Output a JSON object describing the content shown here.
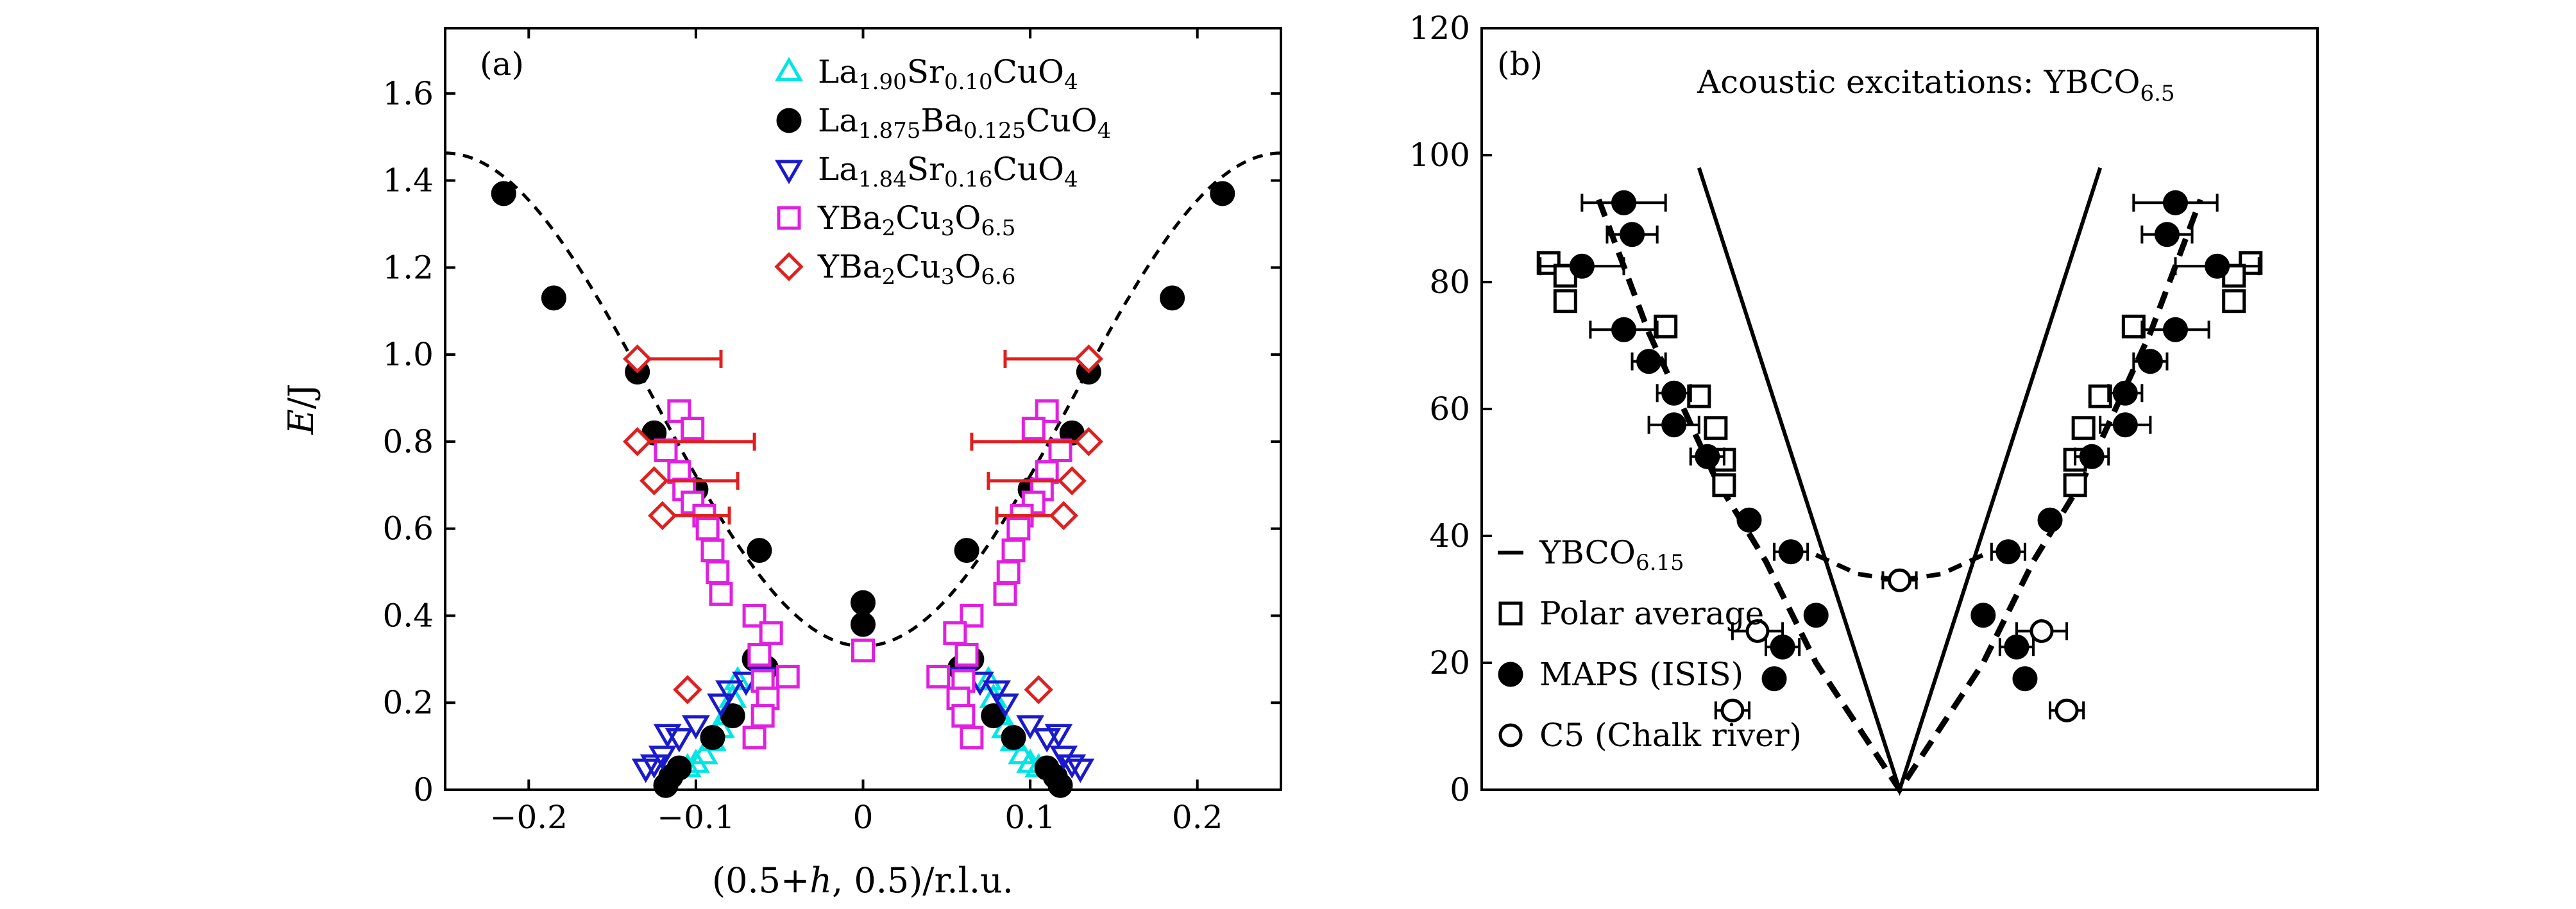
{
  "chart_data": [
    {
      "panel": "(a)",
      "type": "scatter",
      "xlabel_main": "(0.5+",
      "xlabel_italic": "h",
      "xlabel_tail": ", 0.5)/r.l.u.",
      "ylabel_italic": "E",
      "ylabel_tail": "/J",
      "xlim": [
        -0.25,
        0.25
      ],
      "ylim": [
        0,
        1.75
      ],
      "xticks": [
        -0.2,
        -0.1,
        0,
        0.1,
        0.2
      ],
      "xtick_labels": [
        "−0.2",
        "−0.1",
        "0",
        "0.1",
        "0.2"
      ],
      "yticks": [
        0,
        0.2,
        0.4,
        0.6,
        0.8,
        1.0,
        1.2,
        1.4,
        1.6
      ],
      "ytick_labels": [
        "0",
        "0.2",
        "0.4",
        "0.6",
        "0.8",
        "1.0",
        "1.2",
        "1.4",
        "1.6"
      ],
      "legend": [
        {
          "name": "lsco10",
          "parts": [
            [
              "La",
              ""
            ],
            [
              "1.90",
              "sub"
            ],
            [
              "Sr",
              ""
            ],
            [
              "0.10",
              "sub"
            ],
            [
              "CuO",
              ""
            ],
            [
              "4",
              "sub"
            ]
          ]
        },
        {
          "name": "lbco",
          "parts": [
            [
              "La",
              ""
            ],
            [
              "1.875",
              "sub"
            ],
            [
              "Ba",
              ""
            ],
            [
              "0.125",
              "sub"
            ],
            [
              "CuO",
              ""
            ],
            [
              "4",
              "sub"
            ]
          ]
        },
        {
          "name": "lsco16",
          "parts": [
            [
              "La",
              ""
            ],
            [
              "1.84",
              "sub"
            ],
            [
              "Sr",
              ""
            ],
            [
              "0.16",
              "sub"
            ],
            [
              "CuO",
              ""
            ],
            [
              "4",
              "sub"
            ]
          ]
        },
        {
          "name": "ybco65",
          "parts": [
            [
              "YBa",
              ""
            ],
            [
              "2",
              "sub"
            ],
            [
              "Cu",
              ""
            ],
            [
              "3",
              "sub"
            ],
            [
              "O",
              ""
            ],
            [
              "6.5",
              "sub"
            ]
          ]
        },
        {
          "name": "ybco66",
          "parts": [
            [
              "YBa",
              ""
            ],
            [
              "2",
              "sub"
            ],
            [
              "Cu",
              ""
            ],
            [
              "3",
              "sub"
            ],
            [
              "O",
              ""
            ],
            [
              "6.6",
              "sub"
            ]
          ]
        }
      ],
      "series": [
        {
          "name": "lsco10",
          "marker": "triangle-up",
          "color": "#00e5e5",
          "points": [
            [
              -0.075,
              0.25
            ],
            [
              -0.078,
              0.21
            ],
            [
              -0.082,
              0.17
            ],
            [
              -0.085,
              0.14
            ],
            [
              -0.09,
              0.11
            ],
            [
              -0.095,
              0.08
            ],
            [
              -0.1,
              0.06
            ],
            [
              -0.105,
              0.05
            ],
            [
              0.075,
              0.25
            ],
            [
              0.078,
              0.21
            ],
            [
              0.082,
              0.17
            ],
            [
              0.085,
              0.14
            ],
            [
              0.09,
              0.11
            ],
            [
              0.095,
              0.08
            ],
            [
              0.1,
              0.06
            ],
            [
              0.105,
              0.05
            ]
          ]
        },
        {
          "name": "lbco",
          "marker": "circle",
          "color": "#000000",
          "points": [
            [
              -0.215,
              1.37
            ],
            [
              -0.185,
              1.13
            ],
            [
              -0.135,
              0.96
            ],
            [
              -0.125,
              0.82
            ],
            [
              -0.1,
              0.69
            ],
            [
              -0.062,
              0.55
            ],
            [
              -0.065,
              0.3
            ],
            [
              -0.058,
              0.28
            ],
            [
              -0.078,
              0.17
            ],
            [
              -0.09,
              0.12
            ],
            [
              -0.11,
              0.05
            ],
            [
              -0.115,
              0.03
            ],
            [
              -0.118,
              0.01
            ],
            [
              0,
              0.43
            ],
            [
              0,
              0.38
            ],
            [
              0.215,
              1.37
            ],
            [
              0.185,
              1.13
            ],
            [
              0.135,
              0.96
            ],
            [
              0.125,
              0.82
            ],
            [
              0.1,
              0.69
            ],
            [
              0.062,
              0.55
            ],
            [
              0.065,
              0.3
            ],
            [
              0.058,
              0.28
            ],
            [
              0.078,
              0.17
            ],
            [
              0.09,
              0.12
            ],
            [
              0.11,
              0.05
            ],
            [
              0.115,
              0.03
            ],
            [
              0.118,
              0.01
            ]
          ]
        },
        {
          "name": "lsco16",
          "marker": "triangle-down",
          "color": "#1a1acc",
          "points": [
            [
              -0.06,
              0.26
            ],
            [
              -0.07,
              0.25
            ],
            [
              -0.08,
              0.23
            ],
            [
              -0.085,
              0.2
            ],
            [
              -0.1,
              0.15
            ],
            [
              -0.11,
              0.12
            ],
            [
              -0.117,
              0.13
            ],
            [
              -0.12,
              0.08
            ],
            [
              -0.125,
              0.06
            ],
            [
              -0.13,
              0.05
            ],
            [
              0.06,
              0.26
            ],
            [
              0.07,
              0.25
            ],
            [
              0.08,
              0.23
            ],
            [
              0.085,
              0.2
            ],
            [
              0.1,
              0.15
            ],
            [
              0.11,
              0.12
            ],
            [
              0.117,
              0.13
            ],
            [
              0.12,
              0.08
            ],
            [
              0.125,
              0.06
            ],
            [
              0.13,
              0.05
            ]
          ]
        },
        {
          "name": "ybco65",
          "marker": "square",
          "color": "#e020e0",
          "points": [
            [
              -0.11,
              0.87
            ],
            [
              -0.102,
              0.83
            ],
            [
              -0.118,
              0.78
            ],
            [
              -0.11,
              0.73
            ],
            [
              -0.107,
              0.69
            ],
            [
              -0.102,
              0.66
            ],
            [
              -0.095,
              0.63
            ],
            [
              -0.093,
              0.6
            ],
            [
              -0.09,
              0.55
            ],
            [
              -0.087,
              0.5
            ],
            [
              -0.085,
              0.45
            ],
            [
              -0.065,
              0.4
            ],
            [
              -0.055,
              0.36
            ],
            [
              -0.062,
              0.31
            ],
            [
              -0.06,
              0.25
            ],
            [
              -0.057,
              0.21
            ],
            [
              -0.06,
              0.17
            ],
            [
              -0.065,
              0.12
            ],
            [
              -0.045,
              0.26
            ],
            [
              0,
              0.32
            ],
            [
              0.11,
              0.87
            ],
            [
              0.102,
              0.83
            ],
            [
              0.118,
              0.78
            ],
            [
              0.11,
              0.73
            ],
            [
              0.107,
              0.69
            ],
            [
              0.102,
              0.66
            ],
            [
              0.095,
              0.63
            ],
            [
              0.093,
              0.6
            ],
            [
              0.09,
              0.55
            ],
            [
              0.087,
              0.5
            ],
            [
              0.085,
              0.45
            ],
            [
              0.065,
              0.4
            ],
            [
              0.055,
              0.36
            ],
            [
              0.062,
              0.31
            ],
            [
              0.06,
              0.25
            ],
            [
              0.057,
              0.21
            ],
            [
              0.06,
              0.17
            ],
            [
              0.065,
              0.12
            ],
            [
              0.045,
              0.26
            ]
          ]
        },
        {
          "name": "ybco66",
          "marker": "diamond",
          "color": "#e02020",
          "points": [
            [
              -0.135,
              0.99,
              0.025
            ],
            [
              -0.135,
              0.8,
              0.035
            ],
            [
              -0.125,
              0.71,
              0.025
            ],
            [
              -0.12,
              0.63,
              0.02
            ],
            [
              -0.105,
              0.23,
              0
            ],
            [
              0.135,
              0.99,
              0.025
            ],
            [
              0.135,
              0.8,
              0.035
            ],
            [
              0.125,
              0.71,
              0.025
            ],
            [
              0.12,
              0.63,
              0.02
            ],
            [
              0.105,
              0.23,
              0
            ]
          ]
        }
      ],
      "fit_curve": {
        "style": "dashed",
        "a": 0.33,
        "b": 1.03,
        "k": 1.1
      }
    },
    {
      "panel": "(b)",
      "type": "scatter",
      "title_main": "Acoustic excitations: YBCO",
      "title_sub": "6.5",
      "xlim": [
        -0.5,
        0.5
      ],
      "ylim": [
        0,
        120
      ],
      "yticks": [
        0,
        20,
        40,
        60,
        80,
        100,
        120
      ],
      "ytick_labels": [
        "0",
        "20",
        "40",
        "60",
        "80",
        "100",
        "120"
      ],
      "legend": [
        {
          "name": "ybco615",
          "marker": "line",
          "label_main": "YBCO",
          "label_sub": "6.15"
        },
        {
          "name": "polar",
          "marker": "square",
          "label_main": "Polar average",
          "label_sub": ""
        },
        {
          "name": "maps",
          "marker": "circle-filled",
          "label_main": "MAPS (ISIS)",
          "label_sub": ""
        },
        {
          "name": "c5",
          "marker": "circle-open",
          "label_main": "C5 (Chalk river)",
          "label_sub": ""
        }
      ],
      "series": [
        {
          "name": "polar",
          "marker": "square",
          "points": [
            [
              -0.42,
              83
            ],
            [
              -0.4,
              81
            ],
            [
              -0.4,
              77
            ],
            [
              -0.28,
              73
            ],
            [
              -0.24,
              62
            ],
            [
              -0.22,
              57
            ],
            [
              -0.21,
              52
            ],
            [
              -0.21,
              48
            ],
            [
              0.42,
              83
            ],
            [
              0.4,
              81
            ],
            [
              0.4,
              77
            ],
            [
              0.28,
              73
            ],
            [
              0.24,
              62
            ],
            [
              0.22,
              57
            ],
            [
              0.21,
              52
            ],
            [
              0.21,
              48
            ]
          ]
        },
        {
          "name": "maps",
          "marker": "circle-filled",
          "points": [
            [
              -0.33,
              92.5,
              0.05
            ],
            [
              -0.32,
              87.5,
              0.03
            ],
            [
              -0.38,
              82.5,
              0.05
            ],
            [
              -0.33,
              72.5,
              0.04
            ],
            [
              -0.3,
              67.5,
              0.02
            ],
            [
              -0.27,
              62.5,
              0.02
            ],
            [
              -0.27,
              57.5,
              0.03
            ],
            [
              -0.23,
              52.5,
              0.02
            ],
            [
              -0.18,
              42.5,
              0
            ],
            [
              -0.13,
              37.5,
              0.02
            ],
            [
              -0.1,
              27.5,
              0
            ],
            [
              -0.14,
              22.5,
              0.02
            ],
            [
              -0.15,
              17.5,
              0
            ],
            [
              0.33,
              92.5,
              0.05
            ],
            [
              0.32,
              87.5,
              0.03
            ],
            [
              0.38,
              82.5,
              0.05
            ],
            [
              0.33,
              72.5,
              0.04
            ],
            [
              0.3,
              67.5,
              0.02
            ],
            [
              0.27,
              62.5,
              0.02
            ],
            [
              0.27,
              57.5,
              0.03
            ],
            [
              0.23,
              52.5,
              0.02
            ],
            [
              0.18,
              42.5,
              0
            ],
            [
              0.13,
              37.5,
              0.02
            ],
            [
              0.1,
              27.5,
              0
            ],
            [
              0.14,
              22.5,
              0.02
            ],
            [
              0.15,
              17.5,
              0
            ]
          ]
        },
        {
          "name": "c5",
          "marker": "circle-open",
          "points": [
            [
              -0.17,
              25,
              0.03
            ],
            [
              -0.2,
              12.5,
              0.02
            ],
            [
              0,
              33,
              0.02
            ],
            [
              0.17,
              25,
              0.03
            ],
            [
              0.2,
              12.5,
              0.02
            ]
          ]
        }
      ],
      "solid_line": [
        [
          -0.24,
          98
        ],
        [
          0,
          0
        ],
        [
          0.24,
          98
        ]
      ],
      "dashed_line": [
        [
          -0.36,
          93
        ],
        [
          -0.3,
          72
        ],
        [
          -0.22,
          49
        ],
        [
          -0.16,
          36
        ],
        [
          -0.1,
          20
        ],
        [
          0,
          0
        ],
        [
          0.1,
          20
        ],
        [
          0.16,
          36
        ],
        [
          0.22,
          49
        ],
        [
          0.3,
          72
        ],
        [
          0.36,
          93
        ]
      ],
      "dashed_bump": [
        [
          -0.1,
          37
        ],
        [
          -0.05,
          34
        ],
        [
          0,
          33
        ],
        [
          0.05,
          34
        ],
        [
          0.1,
          37
        ]
      ]
    }
  ]
}
